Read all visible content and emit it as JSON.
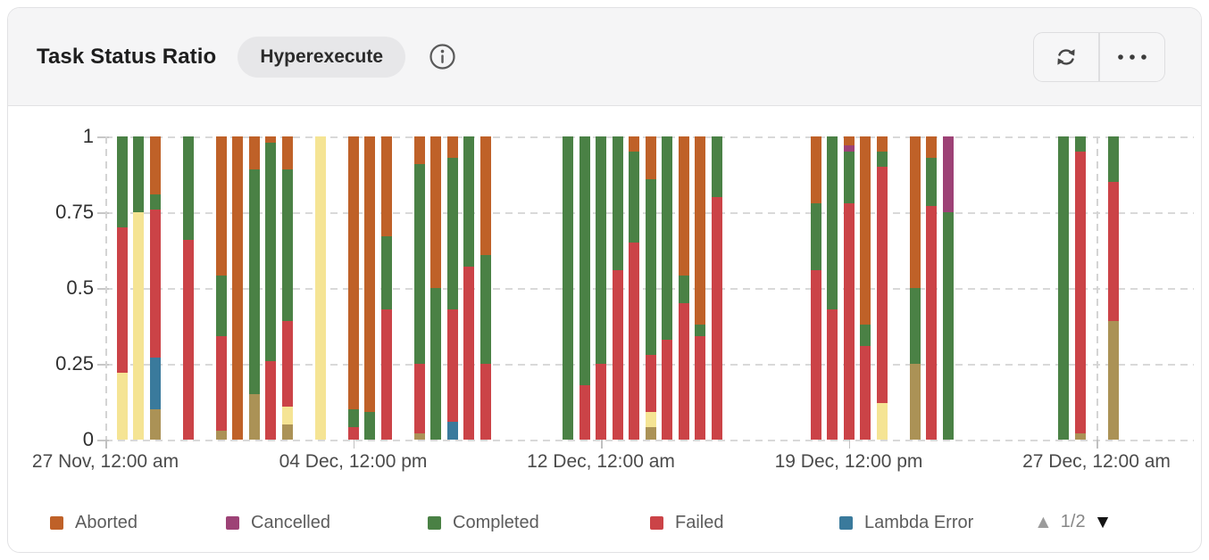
{
  "header": {
    "title": "Task Status Ratio",
    "badge": "Hyperexecute"
  },
  "legend": {
    "items": [
      {
        "key": "aborted",
        "label": "Aborted",
        "color": "#bf6128"
      },
      {
        "key": "cancelled",
        "label": "Cancelled",
        "color": "#9d4276"
      },
      {
        "key": "completed",
        "label": "Completed",
        "color": "#4a8145"
      },
      {
        "key": "failed",
        "label": "Failed",
        "color": "#cb4347"
      },
      {
        "key": "lambda_error",
        "label": "Lambda Error",
        "color": "#3a7a9c"
      }
    ],
    "pagination": {
      "current": "1/2"
    }
  },
  "chart_data": {
    "type": "bar",
    "subtype": "stacked-ratio",
    "title": "Task Status Ratio",
    "ylim": [
      0,
      1
    ],
    "grid": true,
    "bucket_hours": 12,
    "slot_count": 62,
    "y_ticks": [
      {
        "value": 1,
        "label": "1"
      },
      {
        "value": 0.75,
        "label": "0.75"
      },
      {
        "value": 0.5,
        "label": "0.5"
      },
      {
        "value": 0.25,
        "label": "0.25"
      },
      {
        "value": 0,
        "label": "0"
      }
    ],
    "x_ticks": [
      {
        "slot": 0,
        "label": "27 Nov, 12:00 am"
      },
      {
        "slot": 15,
        "label": "04 Dec, 12:00 pm"
      },
      {
        "slot": 30,
        "label": "12 Dec, 12:00 am"
      },
      {
        "slot": 45,
        "label": "19 Dec, 12:00 pm"
      },
      {
        "slot": 60,
        "label": "27 Dec, 12:00 am"
      }
    ],
    "series_colors": {
      "aborted": "#bf6128",
      "cancelled": "#9d4276",
      "completed": "#4a8145",
      "failed": "#cb4347",
      "lambda_error": "#3a7a9c",
      "yellow_page2": "#f5e494",
      "khaki_page2": "#ab9256"
    },
    "bars": [
      {
        "slot": 1,
        "segments": [
          [
            "yellow_page2",
            0.22
          ],
          [
            "failed",
            0.48
          ],
          [
            "completed",
            0.3
          ]
        ]
      },
      {
        "slot": 2,
        "segments": [
          [
            "yellow_page2",
            0.75
          ],
          [
            "completed",
            0.25
          ]
        ]
      },
      {
        "slot": 3,
        "segments": [
          [
            "khaki_page2",
            0.1
          ],
          [
            "lambda_error",
            0.17
          ],
          [
            "failed",
            0.49
          ],
          [
            "completed",
            0.05
          ],
          [
            "aborted",
            0.19
          ]
        ]
      },
      {
        "slot": 5,
        "segments": [
          [
            "failed",
            0.66
          ],
          [
            "completed",
            0.34
          ]
        ]
      },
      {
        "slot": 7,
        "segments": [
          [
            "khaki_page2",
            0.03
          ],
          [
            "failed",
            0.31
          ],
          [
            "completed",
            0.2
          ],
          [
            "aborted",
            0.46
          ]
        ]
      },
      {
        "slot": 8,
        "segments": [
          [
            "aborted",
            1.0
          ]
        ]
      },
      {
        "slot": 9,
        "segments": [
          [
            "khaki_page2",
            0.15
          ],
          [
            "completed",
            0.74
          ],
          [
            "aborted",
            0.11
          ]
        ]
      },
      {
        "slot": 10,
        "segments": [
          [
            "failed",
            0.26
          ],
          [
            "completed",
            0.72
          ],
          [
            "aborted",
            0.02
          ]
        ]
      },
      {
        "slot": 11,
        "segments": [
          [
            "khaki_page2",
            0.05
          ],
          [
            "yellow_page2",
            0.06
          ],
          [
            "failed",
            0.28
          ],
          [
            "completed",
            0.5
          ],
          [
            "aborted",
            0.11
          ]
        ]
      },
      {
        "slot": 13,
        "segments": [
          [
            "yellow_page2",
            1.0
          ]
        ]
      },
      {
        "slot": 15,
        "segments": [
          [
            "failed",
            0.04
          ],
          [
            "completed",
            0.06
          ],
          [
            "aborted",
            0.9
          ]
        ]
      },
      {
        "slot": 16,
        "segments": [
          [
            "completed",
            0.09
          ],
          [
            "aborted",
            0.91
          ]
        ]
      },
      {
        "slot": 17,
        "segments": [
          [
            "failed",
            0.43
          ],
          [
            "completed",
            0.24
          ],
          [
            "aborted",
            0.33
          ]
        ]
      },
      {
        "slot": 19,
        "segments": [
          [
            "khaki_page2",
            0.02
          ],
          [
            "failed",
            0.23
          ],
          [
            "completed",
            0.66
          ],
          [
            "aborted",
            0.09
          ]
        ]
      },
      {
        "slot": 20,
        "segments": [
          [
            "completed",
            0.5
          ],
          [
            "aborted",
            0.5
          ]
        ]
      },
      {
        "slot": 21,
        "segments": [
          [
            "lambda_error",
            0.06
          ],
          [
            "failed",
            0.37
          ],
          [
            "completed",
            0.5
          ],
          [
            "aborted",
            0.07
          ]
        ]
      },
      {
        "slot": 22,
        "segments": [
          [
            "failed",
            0.57
          ],
          [
            "completed",
            0.43
          ]
        ]
      },
      {
        "slot": 23,
        "segments": [
          [
            "failed",
            0.25
          ],
          [
            "completed",
            0.36
          ],
          [
            "aborted",
            0.39
          ]
        ]
      },
      {
        "slot": 28,
        "segments": [
          [
            "completed",
            1.0
          ]
        ]
      },
      {
        "slot": 29,
        "segments": [
          [
            "failed",
            0.18
          ],
          [
            "completed",
            0.82
          ]
        ]
      },
      {
        "slot": 30,
        "segments": [
          [
            "failed",
            0.25
          ],
          [
            "completed",
            0.75
          ]
        ]
      },
      {
        "slot": 31,
        "segments": [
          [
            "failed",
            0.56
          ],
          [
            "completed",
            0.44
          ]
        ]
      },
      {
        "slot": 32,
        "segments": [
          [
            "failed",
            0.65
          ],
          [
            "completed",
            0.3
          ],
          [
            "aborted",
            0.05
          ]
        ]
      },
      {
        "slot": 33,
        "segments": [
          [
            "khaki_page2",
            0.04
          ],
          [
            "yellow_page2",
            0.05
          ],
          [
            "failed",
            0.19
          ],
          [
            "completed",
            0.58
          ],
          [
            "aborted",
            0.14
          ]
        ]
      },
      {
        "slot": 34,
        "segments": [
          [
            "failed",
            0.33
          ],
          [
            "completed",
            0.67
          ]
        ]
      },
      {
        "slot": 35,
        "segments": [
          [
            "failed",
            0.45
          ],
          [
            "completed",
            0.09
          ],
          [
            "aborted",
            0.46
          ]
        ]
      },
      {
        "slot": 36,
        "segments": [
          [
            "failed",
            0.34
          ],
          [
            "completed",
            0.04
          ],
          [
            "aborted",
            0.62
          ]
        ]
      },
      {
        "slot": 37,
        "segments": [
          [
            "failed",
            0.8
          ],
          [
            "completed",
            0.2
          ]
        ]
      },
      {
        "slot": 43,
        "segments": [
          [
            "failed",
            0.56
          ],
          [
            "completed",
            0.22
          ],
          [
            "aborted",
            0.22
          ]
        ]
      },
      {
        "slot": 44,
        "segments": [
          [
            "failed",
            0.43
          ],
          [
            "completed",
            0.57
          ]
        ]
      },
      {
        "slot": 45,
        "segments": [
          [
            "failed",
            0.78
          ],
          [
            "completed",
            0.17
          ],
          [
            "cancelled",
            0.02
          ],
          [
            "aborted",
            0.03
          ]
        ]
      },
      {
        "slot": 46,
        "segments": [
          [
            "failed",
            0.31
          ],
          [
            "completed",
            0.07
          ],
          [
            "aborted",
            0.62
          ]
        ]
      },
      {
        "slot": 47,
        "segments": [
          [
            "yellow_page2",
            0.12
          ],
          [
            "failed",
            0.78
          ],
          [
            "completed",
            0.05
          ],
          [
            "aborted",
            0.05
          ]
        ]
      },
      {
        "slot": 49,
        "segments": [
          [
            "khaki_page2",
            0.25
          ],
          [
            "completed",
            0.25
          ],
          [
            "aborted",
            0.5
          ]
        ]
      },
      {
        "slot": 50,
        "segments": [
          [
            "failed",
            0.77
          ],
          [
            "completed",
            0.16
          ],
          [
            "aborted",
            0.07
          ]
        ]
      },
      {
        "slot": 51,
        "segments": [
          [
            "completed",
            0.75
          ],
          [
            "cancelled",
            0.25
          ]
        ]
      },
      {
        "slot": 58,
        "segments": [
          [
            "completed",
            1.0
          ]
        ]
      },
      {
        "slot": 59,
        "segments": [
          [
            "khaki_page2",
            0.02
          ],
          [
            "failed",
            0.93
          ],
          [
            "completed",
            0.05
          ]
        ]
      },
      {
        "slot": 61,
        "segments": [
          [
            "khaki_page2",
            0.39
          ],
          [
            "failed",
            0.46
          ],
          [
            "completed",
            0.15
          ]
        ]
      }
    ]
  }
}
